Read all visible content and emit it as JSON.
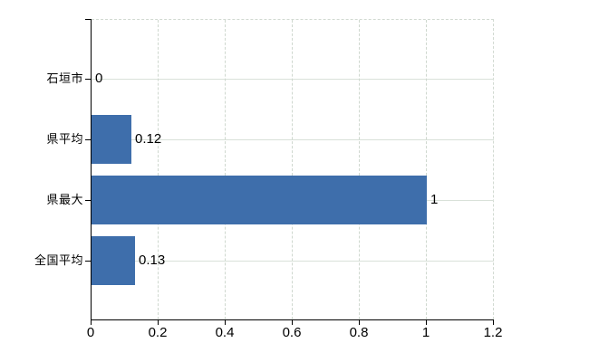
{
  "chart_data": {
    "type": "bar",
    "orientation": "horizontal",
    "title": "",
    "xlabel": "",
    "ylabel": "",
    "categories": [
      "石垣市",
      "県平均",
      "県最大",
      "全国平均"
    ],
    "values": [
      0,
      0.12,
      1,
      0.13
    ],
    "value_labels": [
      "0",
      "0.12",
      "1",
      "0.13"
    ],
    "x_ticks": [
      0,
      0.2,
      0.4,
      0.6,
      0.8,
      1,
      1.2
    ],
    "x_tick_labels": [
      "0",
      "0.2",
      "0.4",
      "0.6",
      "0.8",
      "1",
      "1.2"
    ],
    "xlim": [
      0,
      1.2
    ],
    "grid": true,
    "legend": false,
    "colors": {
      "bar_fill": "#3e6eab",
      "axis_line": "#000000",
      "grid_horizontal": "#d9e1d9",
      "grid_vertical_dashed": "#cfd8cf",
      "plot_border_dashed": "#d2dad2",
      "background": "#ffffff",
      "text": "#000000"
    }
  }
}
